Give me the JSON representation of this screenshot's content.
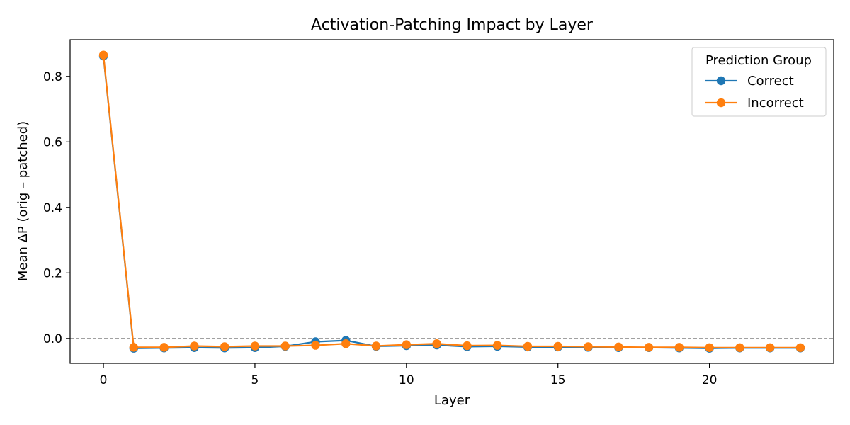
{
  "chart_data": {
    "type": "line",
    "title": "Activation-Patching Impact by Layer",
    "xlabel": "Layer",
    "ylabel": "Mean ΔP (orig – patched)",
    "xlim": [
      -1.1,
      24.1
    ],
    "ylim": [
      -0.076,
      0.912
    ],
    "x_ticks": [
      0,
      5,
      10,
      15,
      20
    ],
    "y_ticks": [
      0.0,
      0.2,
      0.4,
      0.6,
      0.8
    ],
    "y_tick_labels": [
      "0.0",
      "0.2",
      "0.4",
      "0.6",
      "0.8"
    ],
    "reference_line": {
      "y": 0.0,
      "style": "dashed",
      "color": "#808080"
    },
    "grid": false,
    "legend": {
      "title": "Prediction Group",
      "placement": "top-right"
    },
    "x": [
      0,
      1,
      2,
      3,
      4,
      5,
      6,
      7,
      8,
      9,
      10,
      11,
      12,
      13,
      14,
      15,
      16,
      17,
      18,
      19,
      20,
      21,
      22,
      23
    ],
    "series": [
      {
        "name": "Correct",
        "color": "#1f77b4",
        "values": [
          0.862,
          -0.03,
          -0.029,
          -0.028,
          -0.029,
          -0.028,
          -0.024,
          -0.01,
          -0.006,
          -0.024,
          -0.022,
          -0.02,
          -0.025,
          -0.024,
          -0.026,
          -0.026,
          -0.027,
          -0.028,
          -0.028,
          -0.029,
          -0.03,
          -0.029,
          -0.029,
          -0.029
        ]
      },
      {
        "name": "Incorrect",
        "color": "#ff7f0e",
        "values": [
          0.865,
          -0.027,
          -0.027,
          -0.023,
          -0.025,
          -0.023,
          -0.023,
          -0.021,
          -0.016,
          -0.023,
          -0.019,
          -0.016,
          -0.022,
          -0.021,
          -0.024,
          -0.024,
          -0.025,
          -0.026,
          -0.027,
          -0.027,
          -0.028,
          -0.028,
          -0.028,
          -0.028
        ]
      }
    ]
  }
}
